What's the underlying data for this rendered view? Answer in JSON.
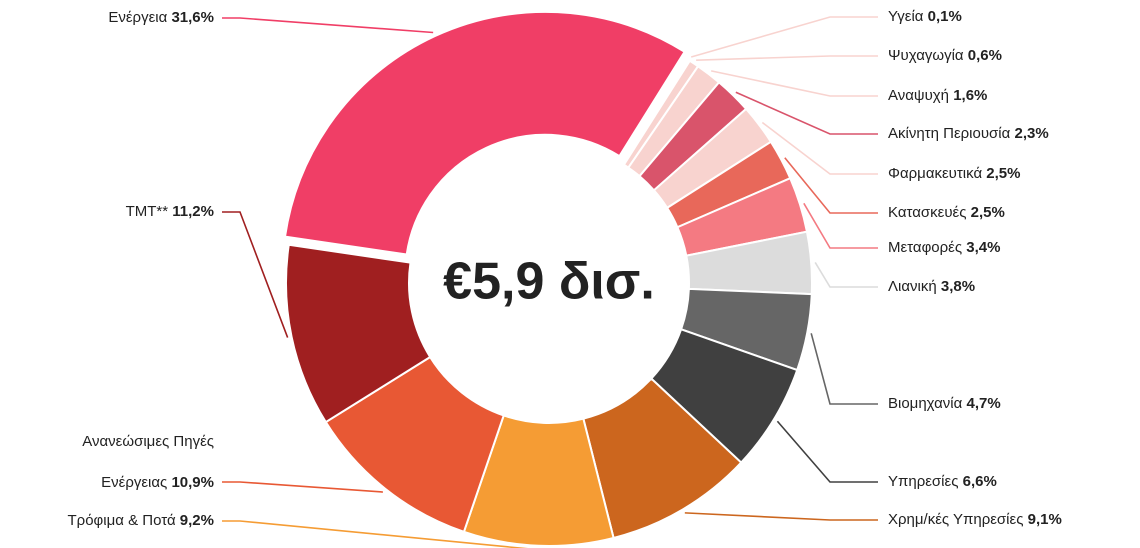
{
  "chart_data": {
    "type": "donut",
    "center_label": "€5,9 δισ.",
    "categories": [
      "Ενέργεια",
      "Υγεία",
      "Ψυχαγωγία",
      "Αναψυχή",
      "Ακίνητη Περιουσία",
      "Φαρμακευτικά",
      "Κατασκευές",
      "Μεταφορές",
      "Λιανική",
      "Βιομηχανία",
      "Υπηρεσίες",
      "Χρημ/κές Υπηρεσίες",
      "Τρόφιμα & Ποτά",
      "Ανανεώσιμες Πηγές Ενέργειας",
      "ΤΜΤ**"
    ],
    "values": [
      31.6,
      0.1,
      0.6,
      1.6,
      2.3,
      2.5,
      2.5,
      3.4,
      3.8,
      4.7,
      6.6,
      9.1,
      9.2,
      10.9,
      11.2
    ],
    "value_labels": [
      "31,6%",
      "0,1%",
      "0,6%",
      "1,6%",
      "2,3%",
      "2,5%",
      "2,5%",
      "3,4%",
      "3,8%",
      "4,7%",
      "6,6%",
      "9,1%",
      "9,2%",
      "10,9%",
      "11,2%"
    ],
    "colors": [
      "#f03e66",
      "#f8d3cf",
      "#f8d3cf",
      "#f8d3cf",
      "#d9546b",
      "#f8d3cf",
      "#e8685a",
      "#f47a82",
      "#dcdcdc",
      "#666666",
      "#404040",
      "#cc661e",
      "#f59c34",
      "#e85834",
      "#a01f20"
    ]
  }
}
